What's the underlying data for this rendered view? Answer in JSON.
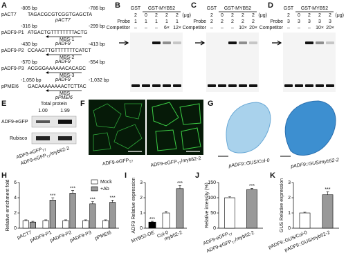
{
  "figure": {
    "panel_letters": [
      "A",
      "B",
      "C",
      "D",
      "E",
      "F",
      "G",
      "H",
      "I",
      "J",
      "K"
    ],
    "panel_a": {
      "rows": [
        {
          "name": "pACT7",
          "start": "-805 bp",
          "end": "-786 bp",
          "sequence": "TAGACGCGTCGGTGAGCTA",
          "promoter": "pACT7"
        },
        {
          "name": "pADF9-P1",
          "start": "-316 bp",
          "end": "-299 bp",
          "sequence": "ATGACTGTTTTTTTTACTG",
          "site": "MBS-1",
          "promoter": "pADF9"
        },
        {
          "name": "pADF9-P2",
          "start": "-430 bp",
          "end": "-413 bp",
          "sequence": "CCAAGTTGTTTTTTTCATCT",
          "site": "MBS-2",
          "promoter": "pADF9"
        },
        {
          "name": "pADF9-P3",
          "start": "-570 bp",
          "end": "-554 bp",
          "sequence": "ACGGGAAAAAACACAGC",
          "site": "MBS-3",
          "promoter": "pADF9"
        },
        {
          "name": "pPMEI6",
          "start": "-1,050 bp",
          "end": "-1,032 bp",
          "sequence": "GACAAAAAAAACTCTTAC",
          "site": "MBS",
          "promoter": "pPMEI6"
        }
      ]
    },
    "emsa": [
      {
        "control": "GST",
        "protein": "GST-MYB52",
        "unit": "(μg)",
        "amounts": [
          "2",
          "0",
          "2",
          "2",
          "2"
        ],
        "probe_label": "Probe",
        "probe": [
          "1",
          "1",
          "1",
          "1",
          "1"
        ],
        "competitor_label": "Competitor",
        "competitor": [
          "–",
          "–",
          "–",
          "6×",
          "12×"
        ]
      },
      {
        "control": "GST",
        "protein": "GST-MYB52",
        "unit": "(μg)",
        "amounts": [
          "2",
          "0",
          "2",
          "2",
          "2"
        ],
        "probe_label": "Probe",
        "probe": [
          "2",
          "2",
          "2",
          "2",
          "2"
        ],
        "competitor_label": "Competitor",
        "competitor": [
          "–",
          "–",
          "–",
          "10×",
          "20×"
        ]
      },
      {
        "control": "GST",
        "protein": "GST-MYB52",
        "unit": "(μg)",
        "amounts": [
          "2",
          "0",
          "2",
          "2",
          "2"
        ],
        "probe_label": "Probe",
        "probe": [
          "3",
          "3",
          "3",
          "3",
          "3"
        ],
        "competitor_label": "Competitor",
        "competitor": [
          "–",
          "–",
          "–",
          "10×",
          "20×"
        ]
      }
    ],
    "panel_e": {
      "title": "Total protein",
      "quantities": [
        "1.00",
        "1.99"
      ],
      "rows": [
        "ADF9-eGFP",
        "Rubisco"
      ],
      "lanes": [
        [
          "ADF9-eGFP",
          "T7"
        ],
        [
          "ADF9-eGFP",
          "T7",
          "/myb52-2"
        ]
      ]
    },
    "panel_f": {
      "images": [
        [
          "ADF9-eGFP",
          "T7"
        ],
        [
          "ADF9-eGFP",
          "T7",
          "/myb52-2"
        ]
      ]
    },
    "panel_g": {
      "images": [
        "pADF9::GUS/Col-0",
        "pADF9::GUS/myb52-2"
      ]
    }
  },
  "chart_data": [
    {
      "type": "bar",
      "ylabel": "Relative enrichment fold",
      "categories": [
        "pACT7",
        "pADF9-P1",
        "pADF9-P2",
        "pADF9-P3",
        "pPMEI6"
      ],
      "series": [
        {
          "name": "Mock",
          "color": "#ffffff",
          "values": [
            1.0,
            1.0,
            1.0,
            1.0,
            1.0
          ],
          "errors": [
            0.1,
            0.1,
            0.1,
            0.1,
            0.1
          ]
        },
        {
          "name": "+Ab",
          "color": "#999999",
          "values": [
            0.8,
            3.7,
            4.6,
            3.2,
            3.4
          ],
          "errors": [
            0.1,
            0.3,
            0.35,
            0.3,
            0.3
          ],
          "significance": [
            null,
            "***",
            "***",
            "***",
            "***"
          ]
        }
      ],
      "ylim": [
        0,
        6
      ],
      "yticks": [
        0,
        2,
        4,
        6
      ],
      "legend": "top-right"
    },
    {
      "type": "bar",
      "ylabel": "ADF9 Relative expression",
      "categories": [
        "MYB52-OE",
        "Col-0",
        "myb52-2"
      ],
      "values": [
        0.4,
        1.0,
        2.6
      ],
      "errors": [
        0.05,
        0.1,
        0.2
      ],
      "colors": [
        "#000000",
        "#ffffff",
        "#999999"
      ],
      "significance": [
        "***",
        null,
        "***"
      ],
      "ylim": [
        0,
        3
      ],
      "yticks": [
        0,
        1,
        2,
        3
      ]
    },
    {
      "type": "bar",
      "ylabel": "Relative intensity (%)",
      "categories": [
        [
          "ADF9-eGFP",
          "T7"
        ],
        [
          "ADF9-eGFP",
          "T7",
          "/myb52-2"
        ]
      ],
      "values": [
        100,
        127
      ],
      "errors": [
        4,
        4
      ],
      "colors": [
        "#ffffff",
        "#999999"
      ],
      "significance": [
        null,
        "***"
      ],
      "ylim": [
        0,
        150
      ],
      "yticks": [
        0,
        50,
        100,
        150
      ]
    },
    {
      "type": "bar",
      "ylabel": "GUS Relative expression",
      "categories": [
        "pADF9::GUS/Col-0",
        "pADF9::GUS/myb52-2"
      ],
      "values": [
        1.0,
        2.2
      ],
      "errors": [
        0.05,
        0.2
      ],
      "colors": [
        "#ffffff",
        "#999999"
      ],
      "significance": [
        null,
        "***"
      ],
      "ylim": [
        0,
        3
      ],
      "yticks": [
        0,
        1,
        2,
        3
      ]
    }
  ]
}
